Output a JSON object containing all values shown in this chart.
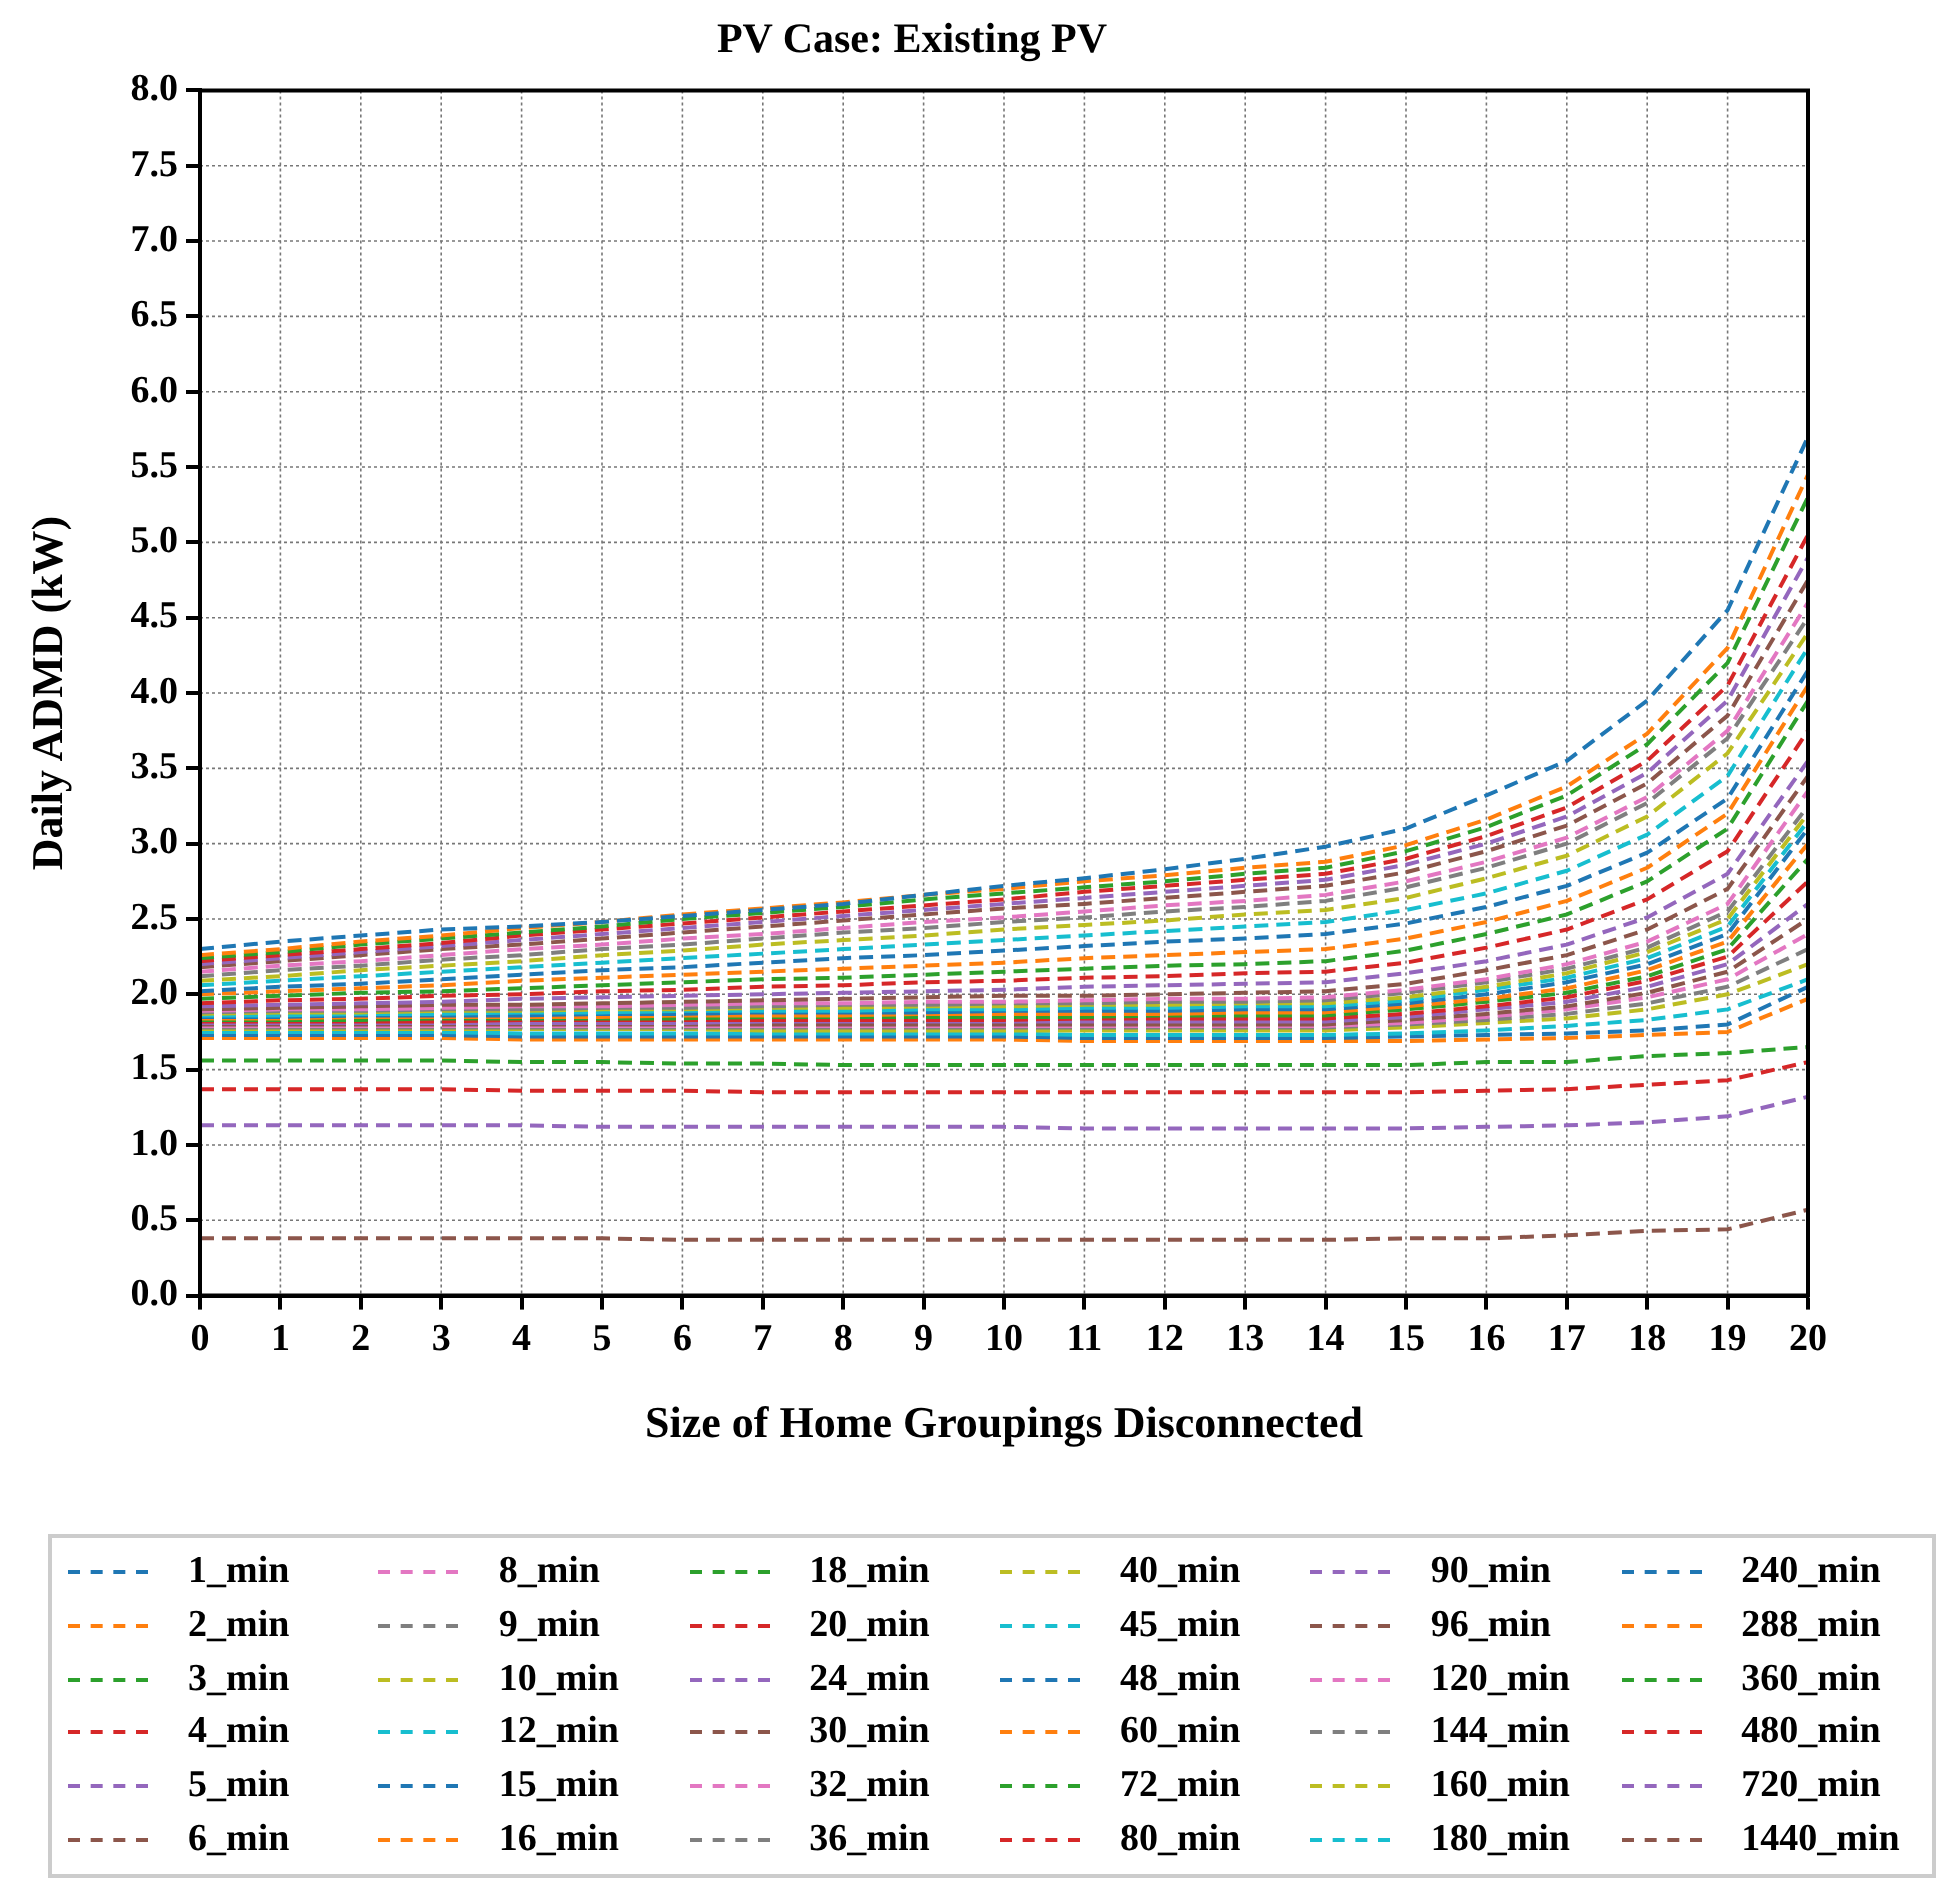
{
  "chart_data": {
    "type": "line",
    "title": "PV Case: Existing PV",
    "xlabel": "Size of Home Groupings Disconnected",
    "ylabel": "Daily ADMD (kW)",
    "x": [
      0,
      1,
      2,
      3,
      4,
      5,
      6,
      7,
      8,
      9,
      10,
      11,
      12,
      13,
      14,
      15,
      16,
      17,
      18,
      19,
      20
    ],
    "xlim": [
      0,
      20
    ],
    "xticks": [
      0,
      1,
      2,
      3,
      4,
      5,
      6,
      7,
      8,
      9,
      10,
      11,
      12,
      13,
      14,
      15,
      16,
      17,
      18,
      19,
      20
    ],
    "ylim": [
      0,
      8
    ],
    "yticks": [
      {
        "value": 0,
        "label": "0.0"
      },
      {
        "value": 0.5,
        "label": "0.5"
      },
      {
        "value": 1,
        "label": "1.0"
      },
      {
        "value": 1.5,
        "label": "1.5"
      },
      {
        "value": 2,
        "label": "2.0"
      },
      {
        "value": 2.5,
        "label": "2.5"
      },
      {
        "value": 3,
        "label": "3.0"
      },
      {
        "value": 3.5,
        "label": "3.5"
      },
      {
        "value": 4,
        "label": "4.0"
      },
      {
        "value": 4.5,
        "label": "4.5"
      },
      {
        "value": 5,
        "label": "5.0"
      },
      {
        "value": 5.5,
        "label": "5.5"
      },
      {
        "value": 6,
        "label": "6.0"
      },
      {
        "value": 6.5,
        "label": "6.5"
      },
      {
        "value": 7,
        "label": "7.0"
      },
      {
        "value": 7.5,
        "label": "7.5"
      },
      {
        "value": 8,
        "label": "8.0"
      }
    ],
    "grid": true,
    "legend": "bottom",
    "marker": "none",
    "line_style": "dashed",
    "series": [
      {
        "name": "1_min",
        "color": "#1f77b4",
        "values": [
          2.3,
          2.35,
          2.39,
          2.43,
          2.45,
          2.48,
          2.52,
          2.56,
          2.6,
          2.66,
          2.72,
          2.77,
          2.83,
          2.9,
          2.98,
          3.1,
          3.32,
          3.55,
          3.95,
          4.55,
          5.7
        ]
      },
      {
        "name": "2_min",
        "color": "#ff7f0e",
        "values": [
          2.26,
          2.3,
          2.35,
          2.39,
          2.44,
          2.48,
          2.53,
          2.57,
          2.61,
          2.66,
          2.7,
          2.75,
          2.79,
          2.84,
          2.88,
          2.99,
          3.16,
          3.38,
          3.73,
          4.3,
          5.45
        ]
      },
      {
        "name": "3_min",
        "color": "#2ca02c",
        "values": [
          2.24,
          2.28,
          2.33,
          2.37,
          2.41,
          2.45,
          2.5,
          2.54,
          2.58,
          2.63,
          2.67,
          2.71,
          2.75,
          2.8,
          2.84,
          2.95,
          3.11,
          3.32,
          3.66,
          4.2,
          5.3
        ]
      },
      {
        "name": "4_min",
        "color": "#d62728",
        "values": [
          2.22,
          2.26,
          2.3,
          2.34,
          2.39,
          2.43,
          2.47,
          2.51,
          2.55,
          2.59,
          2.63,
          2.68,
          2.72,
          2.76,
          2.8,
          2.9,
          3.05,
          3.24,
          3.55,
          4.05,
          5.05
        ]
      },
      {
        "name": "5_min",
        "color": "#9467bd",
        "values": [
          2.2,
          2.24,
          2.28,
          2.32,
          2.36,
          2.4,
          2.44,
          2.48,
          2.52,
          2.56,
          2.6,
          2.64,
          2.68,
          2.72,
          2.76,
          2.86,
          3.0,
          3.18,
          3.47,
          3.95,
          4.9
        ]
      },
      {
        "name": "6_min",
        "color": "#8c564b",
        "values": [
          2.18,
          2.22,
          2.26,
          2.3,
          2.33,
          2.37,
          2.41,
          2.45,
          2.49,
          2.53,
          2.57,
          2.6,
          2.64,
          2.68,
          2.72,
          2.81,
          2.95,
          3.12,
          3.4,
          3.85,
          4.75
        ]
      },
      {
        "name": "8_min",
        "color": "#e377c2",
        "values": [
          2.15,
          2.19,
          2.22,
          2.26,
          2.3,
          2.33,
          2.37,
          2.4,
          2.44,
          2.48,
          2.51,
          2.55,
          2.59,
          2.62,
          2.66,
          2.75,
          2.88,
          3.04,
          3.31,
          3.75,
          4.6
        ]
      },
      {
        "name": "9_min",
        "color": "#7f7f7f",
        "values": [
          2.12,
          2.16,
          2.19,
          2.23,
          2.26,
          2.3,
          2.33,
          2.37,
          2.41,
          2.44,
          2.48,
          2.51,
          2.55,
          2.58,
          2.62,
          2.71,
          2.84,
          3.0,
          3.27,
          3.7,
          4.5
        ]
      },
      {
        "name": "10_min",
        "color": "#bcbd22",
        "values": [
          2.09,
          2.12,
          2.16,
          2.19,
          2.22,
          2.26,
          2.29,
          2.33,
          2.36,
          2.39,
          2.43,
          2.46,
          2.49,
          2.53,
          2.56,
          2.64,
          2.77,
          2.92,
          3.18,
          3.6,
          4.4
        ]
      },
      {
        "name": "12_min",
        "color": "#17becf",
        "values": [
          2.06,
          2.09,
          2.12,
          2.15,
          2.18,
          2.21,
          2.24,
          2.27,
          2.3,
          2.33,
          2.36,
          2.39,
          2.42,
          2.45,
          2.48,
          2.56,
          2.67,
          2.82,
          3.06,
          3.45,
          4.3
        ]
      },
      {
        "name": "15_min",
        "color": "#1f77b4",
        "values": [
          2.02,
          2.05,
          2.07,
          2.1,
          2.13,
          2.16,
          2.18,
          2.21,
          2.24,
          2.26,
          2.29,
          2.32,
          2.35,
          2.37,
          2.4,
          2.47,
          2.58,
          2.72,
          2.94,
          3.3,
          4.15
        ]
      },
      {
        "name": "16_min",
        "color": "#ff7f0e",
        "values": [
          2.0,
          2.02,
          2.04,
          2.06,
          2.09,
          2.11,
          2.13,
          2.15,
          2.17,
          2.19,
          2.21,
          2.24,
          2.26,
          2.28,
          2.3,
          2.37,
          2.48,
          2.62,
          2.84,
          3.2,
          4.05
        ]
      },
      {
        "name": "18_min",
        "color": "#2ca02c",
        "values": [
          1.97,
          1.99,
          2.01,
          2.02,
          2.04,
          2.06,
          2.08,
          2.1,
          2.11,
          2.13,
          2.15,
          2.17,
          2.19,
          2.2,
          2.22,
          2.29,
          2.4,
          2.53,
          2.75,
          3.1,
          3.95
        ]
      },
      {
        "name": "20_min",
        "color": "#d62728",
        "values": [
          1.94,
          1.96,
          1.97,
          1.99,
          2.0,
          2.02,
          2.03,
          2.05,
          2.06,
          2.08,
          2.09,
          2.11,
          2.12,
          2.14,
          2.15,
          2.21,
          2.31,
          2.43,
          2.63,
          2.95,
          3.75
        ]
      },
      {
        "name": "24_min",
        "color": "#9467bd",
        "values": [
          1.92,
          1.93,
          1.94,
          1.95,
          1.97,
          1.98,
          1.99,
          2.0,
          2.01,
          2.02,
          2.03,
          2.05,
          2.06,
          2.07,
          2.08,
          2.14,
          2.22,
          2.33,
          2.51,
          2.8,
          3.55
        ]
      },
      {
        "name": "30_min",
        "color": "#8c564b",
        "values": [
          1.9,
          1.91,
          1.92,
          1.93,
          1.93,
          1.94,
          1.95,
          1.96,
          1.97,
          1.98,
          1.99,
          1.99,
          2.0,
          2.01,
          2.02,
          2.07,
          2.16,
          2.26,
          2.43,
          2.7,
          3.45
        ]
      },
      {
        "name": "32_min",
        "color": "#e377c2",
        "values": [
          1.89,
          1.9,
          1.9,
          1.91,
          1.92,
          1.92,
          1.93,
          1.94,
          1.94,
          1.95,
          1.95,
          1.96,
          1.97,
          1.97,
          1.98,
          2.03,
          2.1,
          2.2,
          2.35,
          2.6,
          3.35
        ]
      },
      {
        "name": "36_min",
        "color": "#7f7f7f",
        "values": [
          1.88,
          1.89,
          1.89,
          1.9,
          1.9,
          1.91,
          1.91,
          1.92,
          1.93,
          1.93,
          1.94,
          1.94,
          1.95,
          1.95,
          1.96,
          2.01,
          2.08,
          2.17,
          2.31,
          2.55,
          3.25
        ]
      },
      {
        "name": "40_min",
        "color": "#bcbd22",
        "values": [
          1.87,
          1.88,
          1.88,
          1.89,
          1.89,
          1.9,
          1.9,
          1.91,
          1.91,
          1.92,
          1.92,
          1.93,
          1.93,
          1.94,
          1.94,
          1.98,
          2.05,
          2.14,
          2.28,
          2.5,
          3.2
        ]
      },
      {
        "name": "45_min",
        "color": "#17becf",
        "values": [
          1.86,
          1.86,
          1.87,
          1.87,
          1.88,
          1.88,
          1.89,
          1.89,
          1.89,
          1.9,
          1.9,
          1.91,
          1.91,
          1.92,
          1.92,
          1.96,
          2.03,
          2.11,
          2.24,
          2.45,
          3.15
        ]
      },
      {
        "name": "48_min",
        "color": "#1f77b4",
        "values": [
          1.85,
          1.85,
          1.86,
          1.86,
          1.86,
          1.87,
          1.87,
          1.88,
          1.88,
          1.88,
          1.89,
          1.89,
          1.89,
          1.9,
          1.9,
          1.94,
          2.0,
          2.08,
          2.2,
          2.4,
          3.1
        ]
      },
      {
        "name": "60_min",
        "color": "#ff7f0e",
        "values": [
          1.84,
          1.84,
          1.85,
          1.85,
          1.85,
          1.85,
          1.86,
          1.86,
          1.86,
          1.87,
          1.87,
          1.87,
          1.87,
          1.88,
          1.88,
          1.92,
          1.97,
          2.04,
          2.16,
          2.35,
          3.0
        ]
      },
      {
        "name": "72_min",
        "color": "#2ca02c",
        "values": [
          1.83,
          1.83,
          1.83,
          1.84,
          1.84,
          1.84,
          1.84,
          1.85,
          1.85,
          1.85,
          1.85,
          1.85,
          1.86,
          1.86,
          1.86,
          1.9,
          1.95,
          2.01,
          2.12,
          2.3,
          2.9
        ]
      },
      {
        "name": "80_min",
        "color": "#d62728",
        "values": [
          1.82,
          1.82,
          1.82,
          1.82,
          1.83,
          1.83,
          1.83,
          1.83,
          1.83,
          1.83,
          1.83,
          1.84,
          1.84,
          1.84,
          1.84,
          1.87,
          1.92,
          1.98,
          2.09,
          2.25,
          2.75
        ]
      },
      {
        "name": "90_min",
        "color": "#9467bd",
        "values": [
          1.81,
          1.81,
          1.81,
          1.81,
          1.81,
          1.81,
          1.81,
          1.82,
          1.82,
          1.82,
          1.82,
          1.82,
          1.82,
          1.82,
          1.82,
          1.85,
          1.9,
          1.95,
          2.05,
          2.2,
          2.6
        ]
      },
      {
        "name": "96_min",
        "color": "#8c564b",
        "values": [
          1.8,
          1.8,
          1.8,
          1.8,
          1.8,
          1.8,
          1.8,
          1.8,
          1.8,
          1.8,
          1.8,
          1.8,
          1.8,
          1.8,
          1.8,
          1.83,
          1.87,
          1.92,
          2.01,
          2.15,
          2.5
        ]
      },
      {
        "name": "120_min",
        "color": "#e377c2",
        "values": [
          1.79,
          1.79,
          1.79,
          1.79,
          1.79,
          1.79,
          1.79,
          1.79,
          1.79,
          1.79,
          1.79,
          1.79,
          1.79,
          1.79,
          1.79,
          1.81,
          1.85,
          1.9,
          1.98,
          2.1,
          2.4
        ]
      },
      {
        "name": "144_min",
        "color": "#7f7f7f",
        "values": [
          1.78,
          1.78,
          1.78,
          1.78,
          1.78,
          1.78,
          1.78,
          1.78,
          1.78,
          1.78,
          1.78,
          1.78,
          1.78,
          1.78,
          1.78,
          1.8,
          1.83,
          1.87,
          1.94,
          2.05,
          2.3
        ]
      },
      {
        "name": "160_min",
        "color": "#bcbd22",
        "values": [
          1.77,
          1.77,
          1.77,
          1.77,
          1.77,
          1.77,
          1.77,
          1.76,
          1.76,
          1.76,
          1.76,
          1.76,
          1.76,
          1.76,
          1.76,
          1.78,
          1.81,
          1.84,
          1.9,
          2.0,
          2.2
        ]
      },
      {
        "name": "180_min",
        "color": "#17becf",
        "values": [
          1.75,
          1.75,
          1.75,
          1.75,
          1.74,
          1.74,
          1.74,
          1.74,
          1.74,
          1.74,
          1.74,
          1.73,
          1.73,
          1.73,
          1.73,
          1.74,
          1.76,
          1.79,
          1.83,
          1.9,
          2.1
        ]
      },
      {
        "name": "240_min",
        "color": "#1f77b4",
        "values": [
          1.73,
          1.73,
          1.73,
          1.73,
          1.72,
          1.72,
          1.72,
          1.72,
          1.72,
          1.72,
          1.72,
          1.71,
          1.71,
          1.71,
          1.71,
          1.72,
          1.73,
          1.74,
          1.76,
          1.8,
          2.05
        ]
      },
      {
        "name": "288_min",
        "color": "#ff7f0e",
        "values": [
          1.71,
          1.71,
          1.71,
          1.71,
          1.7,
          1.7,
          1.7,
          1.7,
          1.7,
          1.7,
          1.7,
          1.69,
          1.69,
          1.69,
          1.69,
          1.69,
          1.7,
          1.71,
          1.73,
          1.75,
          1.97
        ]
      },
      {
        "name": "360_min",
        "color": "#2ca02c",
        "values": [
          1.56,
          1.56,
          1.56,
          1.56,
          1.55,
          1.55,
          1.54,
          1.54,
          1.53,
          1.53,
          1.53,
          1.53,
          1.53,
          1.53,
          1.53,
          1.53,
          1.55,
          1.55,
          1.59,
          1.61,
          1.65
        ]
      },
      {
        "name": "480_min",
        "color": "#d62728",
        "values": [
          1.37,
          1.37,
          1.37,
          1.37,
          1.36,
          1.36,
          1.36,
          1.35,
          1.35,
          1.35,
          1.35,
          1.35,
          1.35,
          1.35,
          1.35,
          1.35,
          1.36,
          1.37,
          1.4,
          1.43,
          1.55
        ]
      },
      {
        "name": "720_min",
        "color": "#9467bd",
        "values": [
          1.13,
          1.13,
          1.13,
          1.13,
          1.13,
          1.12,
          1.12,
          1.12,
          1.12,
          1.12,
          1.12,
          1.11,
          1.11,
          1.11,
          1.11,
          1.11,
          1.12,
          1.13,
          1.15,
          1.19,
          1.32
        ]
      },
      {
        "name": "1440_min",
        "color": "#8c564b",
        "values": [
          0.38,
          0.38,
          0.38,
          0.38,
          0.38,
          0.38,
          0.37,
          0.37,
          0.37,
          0.37,
          0.37,
          0.37,
          0.37,
          0.37,
          0.37,
          0.38,
          0.38,
          0.4,
          0.43,
          0.44,
          0.57
        ]
      }
    ]
  }
}
